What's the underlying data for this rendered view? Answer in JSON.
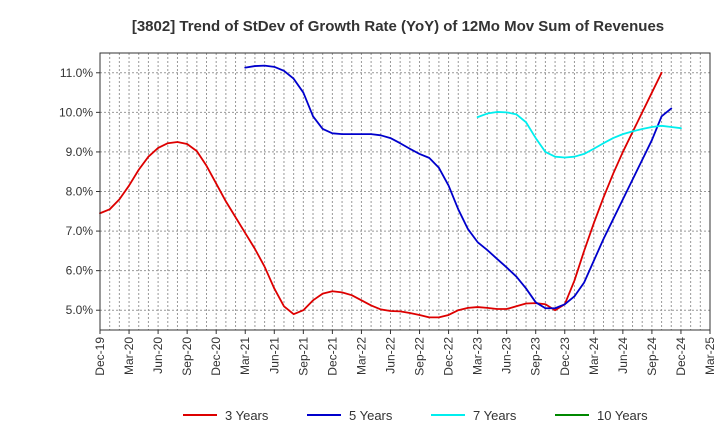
{
  "chart_data": {
    "type": "line",
    "title": "[3802]  Trend of StDev of Growth Rate (YoY) of 12Mo Mov Sum of Revenues",
    "xlabel": "",
    "ylabel": "",
    "ylim": [
      4.5,
      11.5
    ],
    "yticks": [
      5.0,
      6.0,
      7.0,
      8.0,
      9.0,
      10.0,
      11.0
    ],
    "ytick_labels": [
      "5.0%",
      "6.0%",
      "7.0%",
      "8.0%",
      "9.0%",
      "10.0%",
      "11.0%"
    ],
    "x_labels": [
      "Dec-19",
      "Mar-20",
      "Jun-20",
      "Sep-20",
      "Dec-20",
      "Mar-21",
      "Jun-21",
      "Sep-21",
      "Dec-21",
      "Mar-22",
      "Jun-22",
      "Sep-22",
      "Dec-22",
      "Mar-23",
      "Jun-23",
      "Sep-23",
      "Dec-23",
      "Mar-24",
      "Jun-24",
      "Sep-24",
      "Dec-24",
      "Mar-25"
    ],
    "grid": true,
    "legend_position": "bottom",
    "series": [
      {
        "name": "3 Years",
        "color": "#dd0000",
        "start_index": 0,
        "values": [
          7.45,
          7.55,
          7.8,
          8.15,
          8.55,
          8.88,
          9.1,
          9.22,
          9.25,
          9.2,
          9.02,
          8.65,
          8.2,
          7.75,
          7.35,
          6.95,
          6.55,
          6.1,
          5.55,
          5.1,
          4.9,
          5.0,
          5.25,
          5.42,
          5.48,
          5.45,
          5.38,
          5.25,
          5.12,
          5.02,
          4.98,
          4.97,
          4.93,
          4.88,
          4.82,
          4.82,
          4.88,
          5.0,
          5.06,
          5.08,
          5.06,
          5.03,
          5.03,
          5.1,
          5.17,
          5.18,
          5.15,
          5.0,
          5.15,
          5.75,
          6.5,
          7.2,
          7.85,
          8.45,
          9.0,
          9.5,
          10.0,
          10.5,
          11.0
        ]
      },
      {
        "name": "5 Years",
        "color": "#0000cc",
        "start_index": 15,
        "values": [
          11.13,
          11.17,
          11.18,
          11.15,
          11.05,
          10.85,
          10.5,
          9.9,
          9.58,
          9.47,
          9.45,
          9.45,
          9.45,
          9.45,
          9.42,
          9.35,
          9.22,
          9.08,
          8.95,
          8.85,
          8.6,
          8.15,
          7.55,
          7.05,
          6.72,
          6.52,
          6.3,
          6.08,
          5.85,
          5.55,
          5.2,
          5.05,
          5.05,
          5.15,
          5.35,
          5.7,
          6.25,
          6.8,
          7.3,
          7.8,
          8.3,
          8.8,
          9.3,
          9.9,
          10.1
        ]
      },
      {
        "name": "7 Years",
        "color": "#00eeee",
        "start_index": 39,
        "values": [
          9.88,
          9.97,
          10.01,
          10.0,
          9.95,
          9.75,
          9.35,
          9.0,
          8.88,
          8.86,
          8.88,
          8.95,
          9.08,
          9.22,
          9.35,
          9.45,
          9.52,
          9.58,
          9.63,
          9.66,
          9.63,
          9.6
        ]
      },
      {
        "name": "10 Years",
        "color": "#008800",
        "start_index": 0,
        "values": []
      }
    ]
  }
}
